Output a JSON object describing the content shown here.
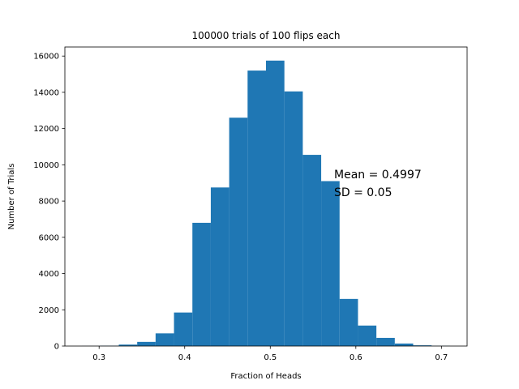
{
  "chart_data": {
    "type": "bar",
    "title": "100000 trials of 100 flips each",
    "xlabel": "Fraction of Heads",
    "ylabel": "Number of Trials",
    "xlim": [
      0.26,
      0.73
    ],
    "ylim": [
      0,
      16500
    ],
    "xticks": [
      0.3,
      0.4,
      0.5,
      0.6,
      0.7
    ],
    "yticks": [
      0,
      2000,
      4000,
      6000,
      8000,
      10000,
      12000,
      14000,
      16000
    ],
    "bar_color": "#1f77b4",
    "bins": [
      {
        "x0": 0.28,
        "x1": 0.3015,
        "value": 5
      },
      {
        "x0": 0.3015,
        "x1": 0.323,
        "value": 15
      },
      {
        "x0": 0.323,
        "x1": 0.3445,
        "value": 80
      },
      {
        "x0": 0.3445,
        "x1": 0.366,
        "value": 230
      },
      {
        "x0": 0.366,
        "x1": 0.3875,
        "value": 700
      },
      {
        "x0": 0.3875,
        "x1": 0.409,
        "value": 1850
      },
      {
        "x0": 0.409,
        "x1": 0.4305,
        "value": 6800
      },
      {
        "x0": 0.4305,
        "x1": 0.452,
        "value": 8750
      },
      {
        "x0": 0.452,
        "x1": 0.4735,
        "value": 12600
      },
      {
        "x0": 0.4735,
        "x1": 0.495,
        "value": 15200
      },
      {
        "x0": 0.495,
        "x1": 0.5165,
        "value": 15750
      },
      {
        "x0": 0.5165,
        "x1": 0.538,
        "value": 14050
      },
      {
        "x0": 0.538,
        "x1": 0.5595,
        "value": 10550
      },
      {
        "x0": 0.5595,
        "x1": 0.581,
        "value": 9100
      },
      {
        "x0": 0.581,
        "x1": 0.6025,
        "value": 2600
      },
      {
        "x0": 0.6025,
        "x1": 0.624,
        "value": 1130
      },
      {
        "x0": 0.624,
        "x1": 0.6455,
        "value": 450
      },
      {
        "x0": 0.6455,
        "x1": 0.667,
        "value": 140
      },
      {
        "x0": 0.667,
        "x1": 0.6885,
        "value": 40
      },
      {
        "x0": 0.6885,
        "x1": 0.71,
        "value": 10
      }
    ],
    "annotations": [
      "Mean = 0.4997",
      "SD = 0.05"
    ],
    "grid": false
  }
}
